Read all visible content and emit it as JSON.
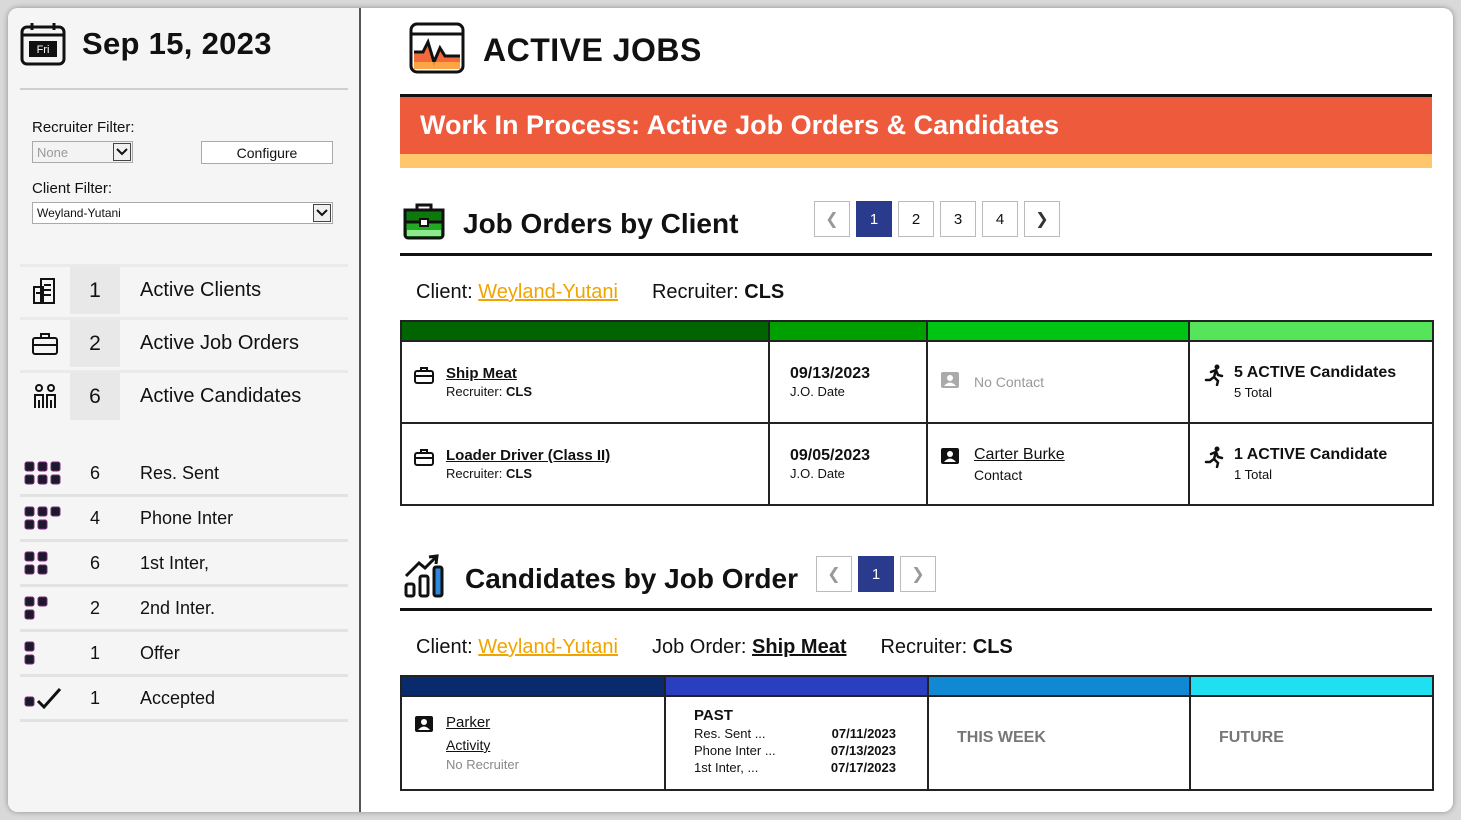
{
  "sidebar": {
    "day_abbr": "Fri",
    "date": "Sep 15, 2023",
    "recruiter_filter": {
      "label": "Recruiter Filter:",
      "value": "None"
    },
    "configure_label": "Configure",
    "client_filter": {
      "label": "Client Filter:",
      "value": "Weyland-Yutani"
    },
    "summary": [
      {
        "icon": "building-icon",
        "count": "1",
        "label": "Active Clients"
      },
      {
        "icon": "briefcase-icon",
        "count": "2",
        "label": "Active Job Orders"
      },
      {
        "icon": "people-icon",
        "count": "6",
        "label": "Active Candidates"
      }
    ],
    "stages": [
      {
        "icon": "stage-dots-6-icon",
        "count": "6",
        "label": "Res. Sent"
      },
      {
        "icon": "stage-dots-5-icon",
        "count": "4",
        "label": "Phone Inter"
      },
      {
        "icon": "stage-dots-4-icon",
        "count": "6",
        "label": "1st Inter,"
      },
      {
        "icon": "stage-dots-3-icon",
        "count": "2",
        "label": "2nd Inter."
      },
      {
        "icon": "stage-dots-2-icon",
        "count": "1",
        "label": "Offer"
      },
      {
        "icon": "checkmark-icon",
        "count": "1",
        "label": "Accepted"
      }
    ]
  },
  "main": {
    "title": "ACTIVE JOBS",
    "banner": "Work In Process: Active Job Orders & Candidates",
    "job_orders": {
      "title": "Job Orders by Client",
      "pages": [
        "1",
        "2",
        "3",
        "4"
      ],
      "active_page": "1",
      "client_label": "Client:",
      "client": "Weyland-Yutani",
      "recruiter_label": "Recruiter:",
      "recruiter": "CLS",
      "header_colors": [
        "#006400",
        "#00a000",
        "#00c414",
        "#56e45a"
      ],
      "rows": [
        {
          "job": "Ship Meat",
          "recruiter_label": "Recruiter:",
          "recruiter": "CLS",
          "date": "09/13/2023",
          "date_label": "J.O. Date",
          "contact": "No Contact",
          "contact_label": "",
          "active": "5 ACTIVE Candidates",
          "total": "5 Total"
        },
        {
          "job": "Loader Driver (Class II)",
          "recruiter_label": "Recruiter:",
          "recruiter": "CLS",
          "date": "09/05/2023",
          "date_label": "J.O. Date",
          "contact": "Carter Burke",
          "contact_label": "Contact",
          "active": "1 ACTIVE Candidate",
          "total": "1 Total"
        }
      ]
    },
    "candidates": {
      "title": "Candidates by Job Order",
      "pages": [
        "1"
      ],
      "active_page": "1",
      "client_label": "Client:",
      "client": "Weyland-Yutani",
      "job_order_label": "Job Order:",
      "job_order": "Ship Meat",
      "recruiter_label": "Recruiter:",
      "recruiter": "CLS",
      "header_colors": [
        "#0a2a6e",
        "#2a3fc0",
        "#1188d4",
        "#1ee0f0"
      ],
      "row": {
        "name": "Parker",
        "activity": "Activity",
        "recruiter": "No Recruiter",
        "past_label": "PAST",
        "past": [
          {
            "stage": "Res. Sent ...",
            "date": "07/11/2023"
          },
          {
            "stage": "Phone Inter ...",
            "date": "07/13/2023"
          },
          {
            "stage": "1st Inter, ...",
            "date": "07/17/2023"
          }
        ],
        "this_week": "THIS WEEK",
        "future": "FUTURE"
      }
    }
  }
}
